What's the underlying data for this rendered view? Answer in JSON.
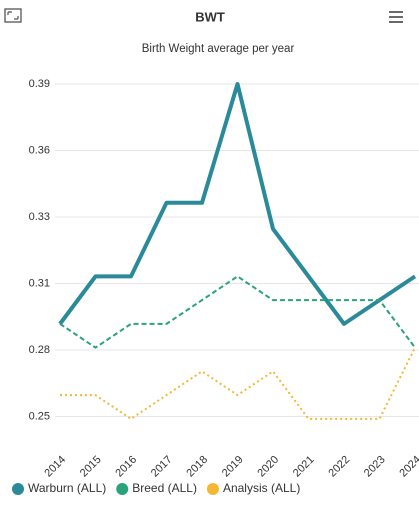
{
  "chart_data": {
    "type": "line",
    "title": "BWT",
    "subtitle": "Birth Weight average per year",
    "categories": [
      "2014",
      "2015",
      "2016",
      "2017",
      "2018",
      "2019",
      "2020",
      "2021",
      "2022",
      "2023",
      "2024"
    ],
    "series": [
      {
        "name": "Warburn (ALL)",
        "color": "#2a8a9a",
        "dash": "solid",
        "values": [
          0.289,
          0.309,
          0.309,
          0.34,
          0.34,
          0.39,
          0.329,
          0.309,
          0.289,
          0.299,
          0.309
        ]
      },
      {
        "name": "Breed (ALL)",
        "color": "#2aa37a",
        "dash": "dashed",
        "values": [
          0.289,
          0.279,
          0.289,
          0.289,
          0.299,
          0.309,
          0.299,
          0.299,
          0.299,
          0.299,
          0.279
        ]
      },
      {
        "name": "Analysis (ALL)",
        "color": "#f5b731",
        "dash": "dotted",
        "values": [
          0.259,
          0.259,
          0.249,
          0.259,
          0.269,
          0.259,
          0.269,
          0.249,
          0.249,
          0.249,
          0.279
        ]
      }
    ],
    "ylim": [
      0.238,
      0.39
    ],
    "yticks": [
      {
        "value": 0.25,
        "label": "0.25"
      },
      {
        "value": 0.278,
        "label": "0.28"
      },
      {
        "value": 0.306,
        "label": "0.31"
      },
      {
        "value": 0.334,
        "label": "0.33"
      },
      {
        "value": 0.362,
        "label": "0.36"
      },
      {
        "value": 0.39,
        "label": "0.39"
      }
    ],
    "grid": true,
    "legend": "bottom"
  }
}
